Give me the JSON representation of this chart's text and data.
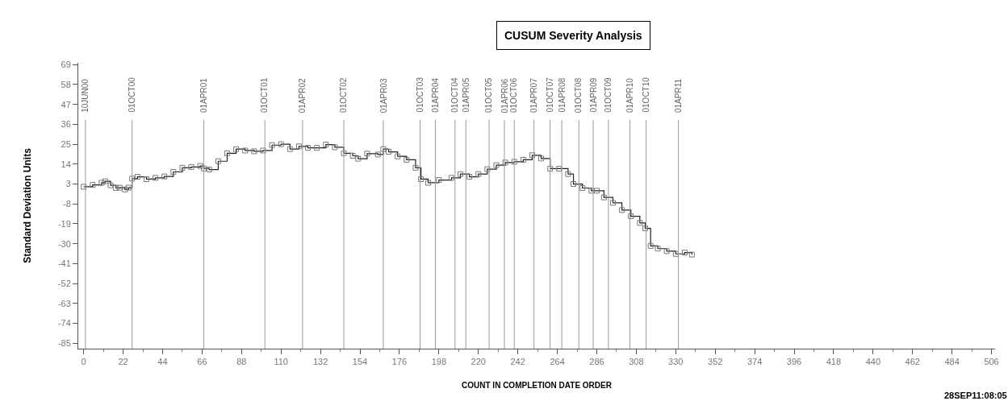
{
  "chart_data": {
    "type": "step",
    "title": "CUSUM Severity Analysis",
    "xlabel": "COUNT IN COMPLETION DATE ORDER",
    "ylabel": "Standard Deviation Units",
    "annotations": [
      "28SEP11:08:05"
    ],
    "marker": "square",
    "line_style": "solid",
    "xlim": [
      -3,
      508
    ],
    "xticks": [
      0,
      22,
      44,
      66,
      88,
      110,
      132,
      154,
      176,
      198,
      220,
      242,
      264,
      286,
      308,
      330,
      352,
      374,
      396,
      418,
      440,
      462,
      484,
      506
    ],
    "ylim": [
      -88,
      70
    ],
    "yticks": [
      -85,
      -74,
      -63,
      -52,
      -41,
      -30,
      -19,
      -8,
      3,
      14,
      25,
      36,
      47,
      58,
      69
    ],
    "ref_lines": [
      {
        "axis": "x",
        "value": 1,
        "label": "10JUN00"
      },
      {
        "axis": "x",
        "value": 27,
        "label": "01OCT00"
      },
      {
        "axis": "x",
        "value": 67,
        "label": "01APR01"
      },
      {
        "axis": "x",
        "value": 101,
        "label": "01OCT01"
      },
      {
        "axis": "x",
        "value": 122,
        "label": "01APR02"
      },
      {
        "axis": "x",
        "value": 145,
        "label": "01OCT02"
      },
      {
        "axis": "x",
        "value": 167,
        "label": "01APR03"
      },
      {
        "axis": "x",
        "value": 187.5,
        "label": "01OCT03"
      },
      {
        "axis": "x",
        "value": 196,
        "label": "01APR04"
      },
      {
        "axis": "x",
        "value": 207,
        "label": "01OCT04"
      },
      {
        "axis": "x",
        "value": 213,
        "label": "01APR05"
      },
      {
        "axis": "x",
        "value": 226,
        "label": "01OCT05"
      },
      {
        "axis": "x",
        "value": 234.5,
        "label": "01APR06"
      },
      {
        "axis": "x",
        "value": 240,
        "label": "01OCT06"
      },
      {
        "axis": "x",
        "value": 251,
        "label": "01APR07"
      },
      {
        "axis": "x",
        "value": 260,
        "label": "01OCT07"
      },
      {
        "axis": "x",
        "value": 266.5,
        "label": "01APR08"
      },
      {
        "axis": "x",
        "value": 276,
        "label": "01OCT08"
      },
      {
        "axis": "x",
        "value": 284,
        "label": "01APR09"
      },
      {
        "axis": "x",
        "value": 292.5,
        "label": "01OCT09"
      },
      {
        "axis": "x",
        "value": 304.5,
        "label": "01APR10"
      },
      {
        "axis": "x",
        "value": 313.5,
        "label": "01OCT10"
      },
      {
        "axis": "x",
        "value": 331.5,
        "label": "01APR11"
      }
    ],
    "series": [
      {
        "color": "#222222",
        "x": [
          0,
          5,
          10,
          12,
          15,
          18,
          20,
          23,
          25,
          27,
          30,
          35,
          40,
          45,
          50,
          55,
          60,
          65,
          67,
          70,
          75,
          80,
          85,
          90,
          95,
          100,
          105,
          110,
          115,
          120,
          125,
          130,
          135,
          140,
          145,
          150,
          153,
          158,
          164,
          167,
          170,
          175,
          180,
          185,
          188,
          192,
          198,
          205,
          210,
          215,
          220,
          225,
          230,
          235,
          240,
          245,
          250,
          255,
          260,
          265,
          270,
          273,
          278,
          283,
          286,
          290,
          295,
          300,
          305,
          310,
          313,
          316,
          320,
          325,
          330,
          335,
          339
        ],
        "values": [
          1.5,
          2.5,
          3.7,
          4.5,
          2.3,
          0.8,
          1,
          0,
          1,
          6,
          7,
          5.7,
          6.4,
          7.2,
          9.7,
          12,
          12.4,
          13,
          11.6,
          11,
          15.6,
          20,
          22.3,
          21.5,
          21.1,
          21.5,
          24.5,
          25,
          22.3,
          23.8,
          23,
          23,
          24.8,
          23.3,
          20,
          18.6,
          17,
          19.8,
          19.3,
          22.3,
          20.8,
          18.3,
          16.4,
          12,
          5.7,
          3.7,
          5.2,
          6.4,
          8.5,
          7,
          8.5,
          11.2,
          13.4,
          14.9,
          15.3,
          16.4,
          18.9,
          17.1,
          11.5,
          11.5,
          8.5,
          3,
          0.8,
          -0.7,
          -0.7,
          -4.4,
          -7.4,
          -11.4,
          -14.8,
          -18.5,
          -21.5,
          -31.2,
          -32.7,
          -34.1,
          -35.6,
          -34.9,
          -36
        ]
      }
    ]
  }
}
